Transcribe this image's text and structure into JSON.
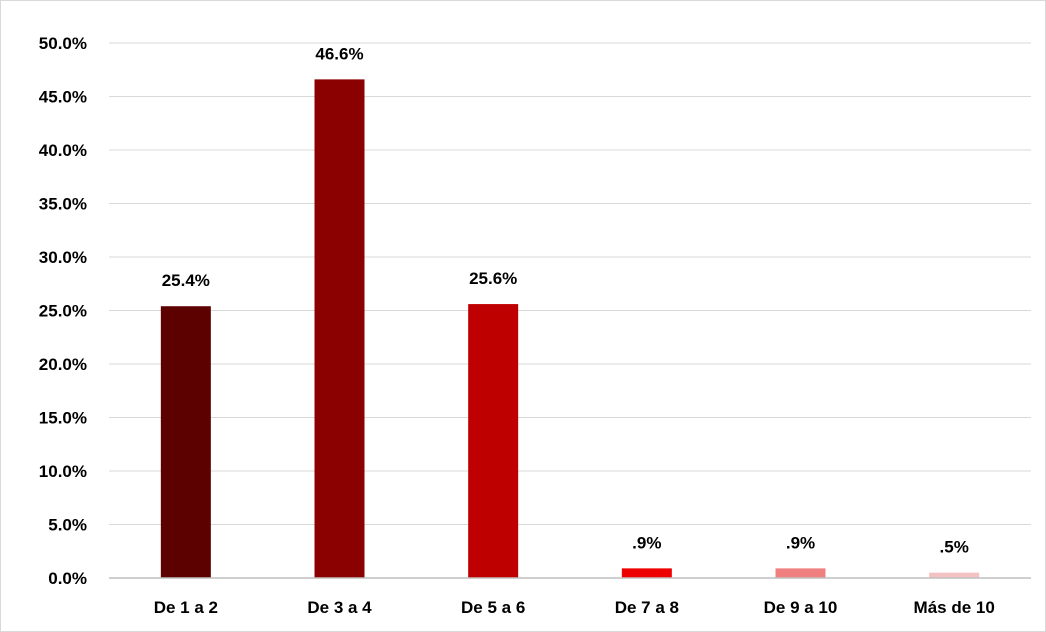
{
  "chart_data": {
    "type": "bar",
    "title": "",
    "xlabel": "",
    "ylabel": "",
    "categories": [
      "De 1 a 2",
      "De 3 a 4",
      "De 5 a 6",
      "De 7 a 8",
      "De 9 a 10",
      "Más de 10"
    ],
    "values": [
      25.4,
      46.6,
      25.6,
      0.9,
      0.9,
      0.5
    ],
    "data_labels": [
      "25.4%",
      "46.6%",
      "25.6%",
      ".9%",
      ".9%",
      ".5%"
    ],
    "bar_colors": [
      "#5c0000",
      "#8b0000",
      "#bf0000",
      "#ee0000",
      "#f08080",
      "#f4c2c2"
    ],
    "ylim": [
      0,
      50
    ],
    "y_ticks": [
      0,
      5,
      10,
      15,
      20,
      25,
      30,
      35,
      40,
      45,
      50
    ],
    "y_tick_labels": [
      "0.0%",
      "5.0%",
      "10.0%",
      "15.0%",
      "20.0%",
      "25.0%",
      "30.0%",
      "35.0%",
      "40.0%",
      "45.0%",
      "50.0%"
    ],
    "grid": true,
    "legend": "none",
    "gridline_color": "#d9d9d9",
    "axis_color": "#bfbfbf"
  }
}
